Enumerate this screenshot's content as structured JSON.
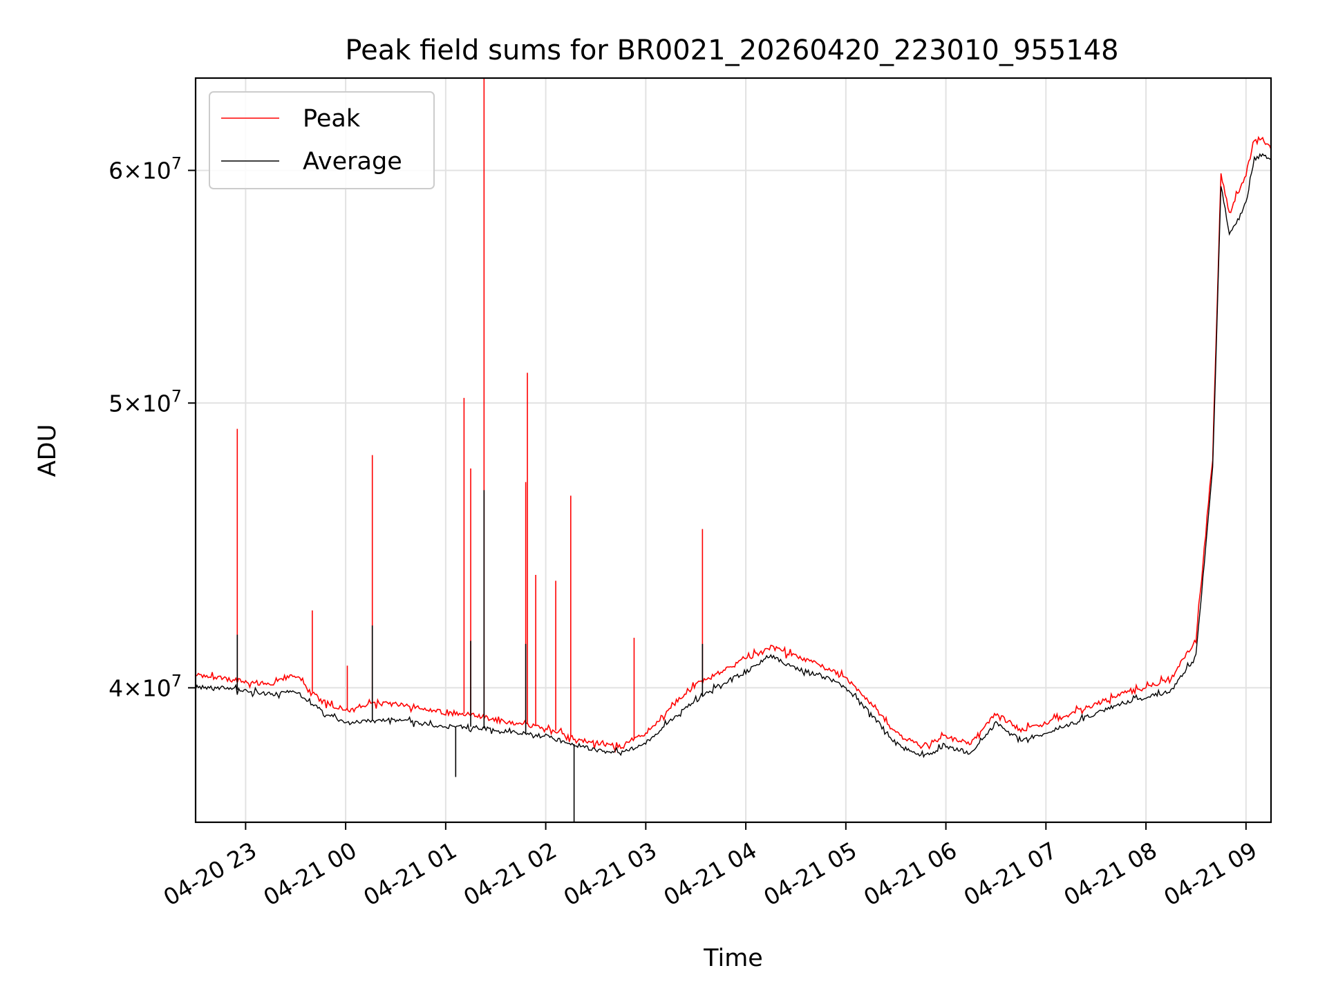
{
  "chart_data": {
    "type": "line",
    "title": "Peak field sums for BR0021_20260420_223010_955148",
    "xlabel": "Time",
    "ylabel": "ADU",
    "y_scale": "log",
    "grid": true,
    "legend_placement": "top-left",
    "xlim": [
      "2026-04-20 22:30",
      "2026-04-21 09:15"
    ],
    "ylim": [
      36000000,
      64500000
    ],
    "x_ticks": [
      "04-20 23",
      "04-21 00",
      "04-21 01",
      "04-21 02",
      "04-21 03",
      "04-21 04",
      "04-21 05",
      "04-21 06",
      "04-21 07",
      "04-21 08",
      "04-21 09"
    ],
    "x_tick_times": [
      "2026-04-20 23:00",
      "2026-04-21 00:00",
      "2026-04-21 01:00",
      "2026-04-21 02:00",
      "2026-04-21 03:00",
      "2026-04-21 04:00",
      "2026-04-21 05:00",
      "2026-04-21 06:00",
      "2026-04-21 07:00",
      "2026-04-21 08:00",
      "2026-04-21 09:00"
    ],
    "y_ticks": [
      {
        "value": 40000000,
        "mantissa": "4",
        "base": "10",
        "exp": "7"
      },
      {
        "value": 50000000,
        "mantissa": "5",
        "base": "10",
        "exp": "7"
      },
      {
        "value": 60000000,
        "mantissa": "6",
        "base": "10",
        "exp": "7"
      }
    ],
    "series": [
      {
        "name": "Peak",
        "color": "#ff0000",
        "x": [
          "2026-04-20 22:30",
          "2026-04-20 22:45",
          "2026-04-20 23:00",
          "2026-04-20 23:15",
          "2026-04-20 23:30",
          "2026-04-20 23:45",
          "2026-04-21 00:00",
          "2026-04-21 00:15",
          "2026-04-21 00:30",
          "2026-04-21 00:45",
          "2026-04-21 01:00",
          "2026-04-21 01:15",
          "2026-04-21 01:30",
          "2026-04-21 01:45",
          "2026-04-21 02:00",
          "2026-04-21 02:15",
          "2026-04-21 02:30",
          "2026-04-21 02:45",
          "2026-04-21 03:00",
          "2026-04-21 03:15",
          "2026-04-21 03:30",
          "2026-04-21 03:45",
          "2026-04-21 04:00",
          "2026-04-21 04:15",
          "2026-04-21 04:30",
          "2026-04-21 04:45",
          "2026-04-21 05:00",
          "2026-04-21 05:15",
          "2026-04-21 05:30",
          "2026-04-21 05:45",
          "2026-04-21 06:00",
          "2026-04-21 06:15",
          "2026-04-21 06:30",
          "2026-04-21 06:45",
          "2026-04-21 07:00",
          "2026-04-21 07:15",
          "2026-04-21 07:30",
          "2026-04-21 07:45",
          "2026-04-21 08:00",
          "2026-04-21 08:15",
          "2026-04-21 08:30",
          "2026-04-21 08:40",
          "2026-04-21 08:45",
          "2026-04-21 08:50",
          "2026-04-21 09:00",
          "2026-04-21 09:05",
          "2026-04-21 09:10",
          "2026-04-21 09:15"
        ],
        "y": [
          40400000,
          40300000,
          40200000,
          40100000,
          40400000,
          39600000,
          39300000,
          39500000,
          39500000,
          39400000,
          39200000,
          39200000,
          39000000,
          38900000,
          38800000,
          38500000,
          38300000,
          38200000,
          38600000,
          39400000,
          40100000,
          40500000,
          40900000,
          41300000,
          41000000,
          40700000,
          40300000,
          39500000,
          38600000,
          38200000,
          38500000,
          38300000,
          39200000,
          38700000,
          38900000,
          39200000,
          39500000,
          39800000,
          40000000,
          40300000,
          41500000,
          48000000,
          59800000,
          58000000,
          59800000,
          61500000,
          61500000,
          61000000
        ]
      },
      {
        "name": "Average",
        "color": "#000000",
        "x": [
          "2026-04-20 22:30",
          "2026-04-20 22:45",
          "2026-04-20 23:00",
          "2026-04-20 23:15",
          "2026-04-20 23:30",
          "2026-04-20 23:45",
          "2026-04-21 00:00",
          "2026-04-21 00:15",
          "2026-04-21 00:30",
          "2026-04-21 00:45",
          "2026-04-21 01:00",
          "2026-04-21 01:15",
          "2026-04-21 01:30",
          "2026-04-21 01:45",
          "2026-04-21 02:00",
          "2026-04-21 02:15",
          "2026-04-21 02:30",
          "2026-04-21 02:45",
          "2026-04-21 03:00",
          "2026-04-21 03:15",
          "2026-04-21 03:30",
          "2026-04-21 03:45",
          "2026-04-21 04:00",
          "2026-04-21 04:15",
          "2026-04-21 04:30",
          "2026-04-21 04:45",
          "2026-04-21 05:00",
          "2026-04-21 05:15",
          "2026-04-21 05:30",
          "2026-04-21 05:45",
          "2026-04-21 06:00",
          "2026-04-21 06:15",
          "2026-04-21 06:30",
          "2026-04-21 06:45",
          "2026-04-21 07:00",
          "2026-04-21 07:15",
          "2026-04-21 07:30",
          "2026-04-21 07:45",
          "2026-04-21 08:00",
          "2026-04-21 08:15",
          "2026-04-21 08:30",
          "2026-04-21 08:40",
          "2026-04-21 08:45",
          "2026-04-21 08:50",
          "2026-04-21 09:00",
          "2026-04-21 09:05",
          "2026-04-21 09:10",
          "2026-04-21 09:15"
        ],
        "y": [
          40000000,
          40000000,
          39900000,
          39800000,
          39900000,
          39300000,
          38900000,
          39000000,
          39000000,
          38900000,
          38800000,
          38800000,
          38700000,
          38600000,
          38500000,
          38300000,
          38100000,
          38000000,
          38300000,
          39000000,
          39600000,
          40100000,
          40500000,
          41000000,
          40600000,
          40400000,
          40000000,
          39200000,
          38300000,
          37900000,
          38200000,
          38000000,
          38900000,
          38400000,
          38600000,
          38900000,
          39200000,
          39500000,
          39700000,
          39900000,
          41000000,
          47500000,
          59300000,
          57000000,
          58500000,
          60500000,
          60800000,
          60500000
        ]
      }
    ],
    "spikes": [
      {
        "series": "Peak",
        "x": "2026-04-20 22:55",
        "y": 49000000
      },
      {
        "series": "Peak",
        "x": "2026-04-20 23:40",
        "y": 42500000
      },
      {
        "series": "Peak",
        "x": "2026-04-21 00:01",
        "y": 40700000
      },
      {
        "series": "Peak",
        "x": "2026-04-21 00:16",
        "y": 48000000
      },
      {
        "series": "Peak",
        "x": "2026-04-21 01:11",
        "y": 50200000
      },
      {
        "series": "Peak",
        "x": "2026-04-21 01:15",
        "y": 47500000
      },
      {
        "series": "Peak",
        "x": "2026-04-21 01:23",
        "y": 64500000
      },
      {
        "series": "Peak",
        "x": "2026-04-21 01:48",
        "y": 47000000
      },
      {
        "series": "Peak",
        "x": "2026-04-21 01:49",
        "y": 51200000
      },
      {
        "series": "Peak",
        "x": "2026-04-21 01:54",
        "y": 43700000
      },
      {
        "series": "Peak",
        "x": "2026-04-21 02:06",
        "y": 43500000
      },
      {
        "series": "Peak",
        "x": "2026-04-21 02:15",
        "y": 46500000
      },
      {
        "series": "Peak",
        "x": "2026-04-21 02:53",
        "y": 41600000
      },
      {
        "series": "Peak",
        "x": "2026-04-21 03:34",
        "y": 45300000
      },
      {
        "series": "Average",
        "x": "2026-04-20 22:55",
        "y": 41700000
      },
      {
        "series": "Average",
        "x": "2026-04-21 00:16",
        "y": 42000000
      },
      {
        "series": "Average",
        "x": "2026-04-21 01:23",
        "y": 46700000
      },
      {
        "series": "Average",
        "x": "2026-04-21 01:15",
        "y": 41500000
      },
      {
        "series": "Average",
        "x": "2026-04-21 01:48",
        "y": 41400000
      },
      {
        "series": "Average",
        "x": "2026-04-21 03:34",
        "y": 41400000
      },
      {
        "series": "Average",
        "x": "2026-04-21 02:17",
        "y": 36000000
      },
      {
        "series": "Average",
        "x": "2026-04-21 01:06",
        "y": 37300000
      }
    ]
  }
}
